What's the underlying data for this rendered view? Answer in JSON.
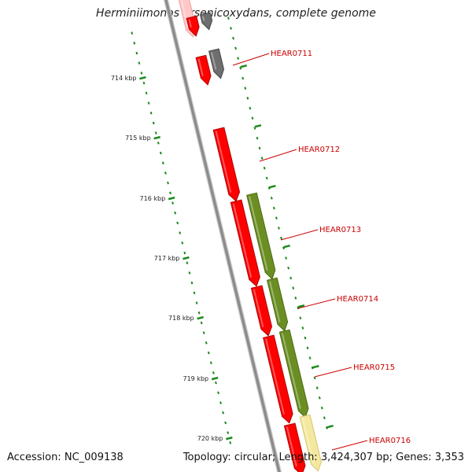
{
  "title": "Herminiimonas arsenicoxydans, complete genome",
  "footer": {
    "accession_label": "Accession:",
    "accession": "NC_009138",
    "topology_label": "Topology:",
    "topology": "circular",
    "length_label": "Length:",
    "length": "3,424,307 bp",
    "genes_label": "Genes:",
    "genes": "3,353"
  },
  "colors": {
    "backbone": "#8c8c8c",
    "gene_red": "#ff0000",
    "gene_red_faded": "#ffc8c8",
    "gene_gray": "#6e6e6e",
    "gene_green": "#6b8e23",
    "gene_yellow": "#f4e8a0",
    "ticks": "#1a8a1a",
    "label": "#cc0000"
  },
  "scale": {
    "unit": "kbp",
    "labels": [
      "714 kbp",
      "715 kbp",
      "716 kbp",
      "717 kbp",
      "718 kbp",
      "719 kbp",
      "720 kbp"
    ]
  },
  "genes": [
    "HEAR0711",
    "HEAR0712",
    "HEAR0713",
    "HEAR0714",
    "HEAR0715",
    "HEAR0716"
  ]
}
